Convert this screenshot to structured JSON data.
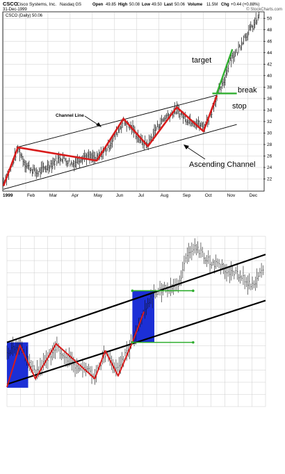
{
  "header": {
    "symbol": "CSCO",
    "company": "Cisco Systems, Inc.",
    "exchange": "Nasdaq GS",
    "date": "31-Dec-1999",
    "open_label": "Open",
    "open": "49.85",
    "high_label": "High",
    "high": "50.08",
    "low_label": "Low",
    "low": "49.50",
    "last_label": "Last",
    "last": "50.06",
    "volume_label": "Volume",
    "volume": "11.5M",
    "chg_label": "Chg",
    "chg": "+0.44 (+0.88%)",
    "brand": "© StockCharts.com",
    "legend": "CSCO (Daily) 50.06"
  },
  "colors": {
    "price_bars": "#111111",
    "zigzag": "#d81b1b",
    "breakout": "#2fae2f",
    "channel": "#000000",
    "box": "#1c2fd6",
    "grid": "#cccccc"
  },
  "chart_data": [
    {
      "type": "line",
      "ylim": [
        20,
        51
      ],
      "y_ticks": [
        "22",
        "24",
        "26",
        "28",
        "30",
        "32",
        "34",
        "36",
        "38",
        "40",
        "42",
        "44",
        "46",
        "48",
        "50"
      ],
      "x_ticks": [
        "1999",
        "Feb",
        "Mar",
        "Apr",
        "May",
        "Jun",
        "Jul",
        "Aug",
        "Sep",
        "Oct",
        "Nov",
        "Dec"
      ],
      "annotations": {
        "channel_line": "Channel Line",
        "ascending_channel": "Ascending Channel",
        "target": "target",
        "break": "break",
        "stop": "stop"
      },
      "zigzag": [
        [
          0,
          20.8
        ],
        [
          0.65,
          27.5
        ],
        [
          4.2,
          25.2
        ],
        [
          5.4,
          32.5
        ],
        [
          6.5,
          27.7
        ],
        [
          7.8,
          34.5
        ],
        [
          9.0,
          30.3
        ],
        [
          9.6,
          36.5
        ]
      ],
      "target_line": [
        [
          9.6,
          36.9
        ],
        [
          10.3,
          44.6
        ]
      ],
      "break_line": [
        [
          9.4,
          36.9
        ],
        [
          10.5,
          36.9
        ]
      ],
      "upper_channel": [
        [
          0.6,
          27.5
        ],
        [
          9.6,
          36.6
        ]
      ],
      "lower_channel": [
        [
          0,
          20.2
        ],
        [
          10.5,
          31.5
        ]
      ],
      "price_path": [
        [
          0,
          21.5
        ],
        [
          0.3,
          23.5
        ],
        [
          0.65,
          27.3
        ],
        [
          1.0,
          24.5
        ],
        [
          1.5,
          23.0
        ],
        [
          2.0,
          24.2
        ],
        [
          2.6,
          25.8
        ],
        [
          3.1,
          24.6
        ],
        [
          3.6,
          26.0
        ],
        [
          4.2,
          25.5
        ],
        [
          4.7,
          27.5
        ],
        [
          5.4,
          32.0
        ],
        [
          5.8,
          30.8
        ],
        [
          6.2,
          28.5
        ],
        [
          6.5,
          28.0
        ],
        [
          6.9,
          31.0
        ],
        [
          7.3,
          32.8
        ],
        [
          7.8,
          34.0
        ],
        [
          8.2,
          32.5
        ],
        [
          8.6,
          32.0
        ],
        [
          9.0,
          31.0
        ],
        [
          9.3,
          33.0
        ],
        [
          9.6,
          36.5
        ],
        [
          9.9,
          38.5
        ],
        [
          10.2,
          43.0
        ],
        [
          10.5,
          44.0
        ],
        [
          10.8,
          46.5
        ],
        [
          11.1,
          48.0
        ],
        [
          11.3,
          49.0
        ],
        [
          11.5,
          50.2
        ]
      ]
    },
    {
      "type": "line",
      "zigzag": [
        [
          0,
          1.4
        ],
        [
          0.5,
          4.4
        ],
        [
          1.1,
          2.0
        ],
        [
          1.9,
          4.5
        ],
        [
          3.4,
          2.0
        ],
        [
          3.8,
          4.0
        ],
        [
          4.3,
          2.2
        ],
        [
          4.85,
          4.6
        ],
        [
          5.3,
          6.8
        ]
      ],
      "upper_channel": [
        [
          0,
          4.6
        ],
        [
          10,
          10.9
        ]
      ],
      "lower_channel": [
        [
          0,
          1.6
        ],
        [
          10,
          7.6
        ]
      ],
      "box_lower": [
        [
          0,
          1.35
        ],
        [
          0.82,
          4.6
        ]
      ],
      "box_upper": [
        [
          4.85,
          4.6
        ],
        [
          5.7,
          8.3
        ]
      ],
      "green_upper": [
        [
          4.85,
          8.3
        ],
        [
          7.2,
          8.3
        ]
      ],
      "green_lower": [
        [
          4.85,
          4.6
        ],
        [
          7.2,
          4.6
        ]
      ],
      "price_path": [
        [
          0,
          3.9
        ],
        [
          0.5,
          4.4
        ],
        [
          1.1,
          2.3
        ],
        [
          1.9,
          4.3
        ],
        [
          2.6,
          3.0
        ],
        [
          3.4,
          2.3
        ],
        [
          3.8,
          3.8
        ],
        [
          4.3,
          2.6
        ],
        [
          4.85,
          4.7
        ],
        [
          5.3,
          6.8
        ],
        [
          5.7,
          8.2
        ],
        [
          6.2,
          8.5
        ],
        [
          6.7,
          8.9
        ],
        [
          6.9,
          10.5
        ],
        [
          7.2,
          11.5
        ],
        [
          7.6,
          10.8
        ],
        [
          8.0,
          10.2
        ],
        [
          8.5,
          9.8
        ],
        [
          9.0,
          9.4
        ],
        [
          9.5,
          8.6
        ],
        [
          9.9,
          9.7
        ]
      ]
    }
  ]
}
